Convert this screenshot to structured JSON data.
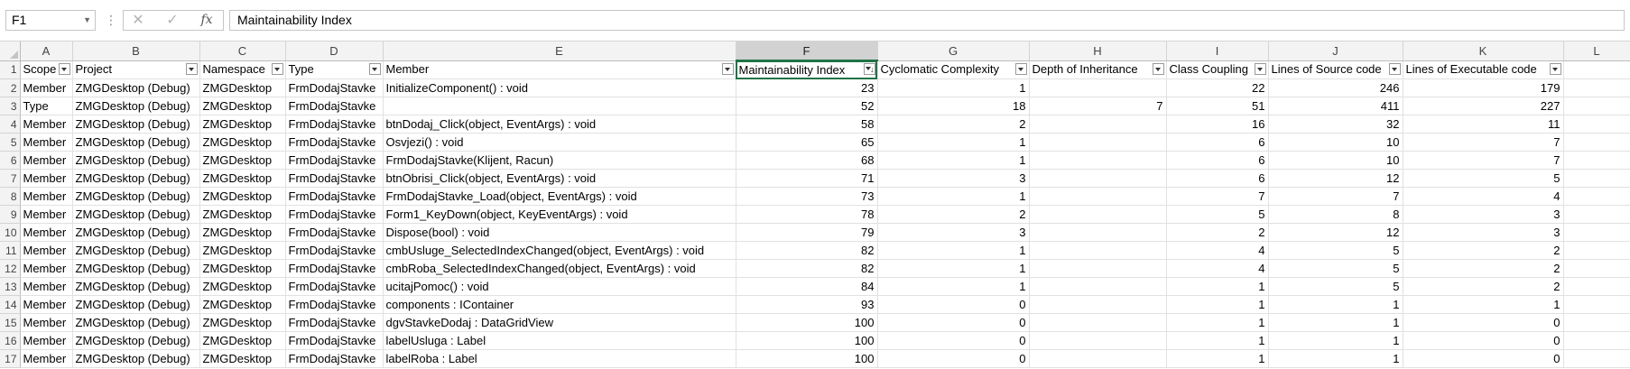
{
  "formula_bar": {
    "name_box": "F1",
    "formula": "Maintainability Index",
    "fx_label": "fx",
    "cancel_glyph": "✕",
    "enter_glyph": "✓",
    "dots_glyph": "⋮"
  },
  "columns": [
    "A",
    "B",
    "C",
    "D",
    "E",
    "F",
    "G",
    "H",
    "I",
    "J",
    "K",
    "L"
  ],
  "active_column": "F",
  "headers": [
    "Scope",
    "Project",
    "Namespace",
    "Type",
    "Member",
    "Maintainability Index",
    "Cyclomatic Complexity",
    "Depth of Inheritance",
    "Class Coupling",
    "Lines of Source code",
    "Lines of Executable code"
  ],
  "rows": [
    [
      "Member",
      "ZMGDesktop (Debug)",
      "ZMGDesktop",
      "FrmDodajStavke",
      "InitializeComponent() : void",
      "23",
      "1",
      "",
      "22",
      "246",
      "179"
    ],
    [
      "Type",
      "ZMGDesktop (Debug)",
      "ZMGDesktop",
      "FrmDodajStavke",
      "",
      "52",
      "18",
      "7",
      "51",
      "411",
      "227"
    ],
    [
      "Member",
      "ZMGDesktop (Debug)",
      "ZMGDesktop",
      "FrmDodajStavke",
      "btnDodaj_Click(object, EventArgs) : void",
      "58",
      "2",
      "",
      "16",
      "32",
      "11"
    ],
    [
      "Member",
      "ZMGDesktop (Debug)",
      "ZMGDesktop",
      "FrmDodajStavke",
      "Osvjezi() : void",
      "65",
      "1",
      "",
      "6",
      "10",
      "7"
    ],
    [
      "Member",
      "ZMGDesktop (Debug)",
      "ZMGDesktop",
      "FrmDodajStavke",
      "FrmDodajStavke(Klijent, Racun)",
      "68",
      "1",
      "",
      "6",
      "10",
      "7"
    ],
    [
      "Member",
      "ZMGDesktop (Debug)",
      "ZMGDesktop",
      "FrmDodajStavke",
      "btnObrisi_Click(object, EventArgs) : void",
      "71",
      "3",
      "",
      "6",
      "12",
      "5"
    ],
    [
      "Member",
      "ZMGDesktop (Debug)",
      "ZMGDesktop",
      "FrmDodajStavke",
      "FrmDodajStavke_Load(object, EventArgs) : void",
      "73",
      "1",
      "",
      "7",
      "7",
      "4"
    ],
    [
      "Member",
      "ZMGDesktop (Debug)",
      "ZMGDesktop",
      "FrmDodajStavke",
      "Form1_KeyDown(object, KeyEventArgs) : void",
      "78",
      "2",
      "",
      "5",
      "8",
      "3"
    ],
    [
      "Member",
      "ZMGDesktop (Debug)",
      "ZMGDesktop",
      "FrmDodajStavke",
      "Dispose(bool) : void",
      "79",
      "3",
      "",
      "2",
      "12",
      "3"
    ],
    [
      "Member",
      "ZMGDesktop (Debug)",
      "ZMGDesktop",
      "FrmDodajStavke",
      "cmbUsluge_SelectedIndexChanged(object, EventArgs) : void",
      "82",
      "1",
      "",
      "4",
      "5",
      "2"
    ],
    [
      "Member",
      "ZMGDesktop (Debug)",
      "ZMGDesktop",
      "FrmDodajStavke",
      "cmbRoba_SelectedIndexChanged(object, EventArgs) : void",
      "82",
      "1",
      "",
      "4",
      "5",
      "2"
    ],
    [
      "Member",
      "ZMGDesktop (Debug)",
      "ZMGDesktop",
      "FrmDodajStavke",
      "ucitajPomoc() : void",
      "84",
      "1",
      "",
      "1",
      "5",
      "2"
    ],
    [
      "Member",
      "ZMGDesktop (Debug)",
      "ZMGDesktop",
      "FrmDodajStavke",
      "components : IContainer",
      "93",
      "0",
      "",
      "1",
      "1",
      "1"
    ],
    [
      "Member",
      "ZMGDesktop (Debug)",
      "ZMGDesktop",
      "FrmDodajStavke",
      "dgvStavkeDodaj : DataGridView",
      "100",
      "0",
      "",
      "1",
      "1",
      "0"
    ],
    [
      "Member",
      "ZMGDesktop (Debug)",
      "ZMGDesktop",
      "FrmDodajStavke",
      "labelUsluga : Label",
      "100",
      "0",
      "",
      "1",
      "1",
      "0"
    ],
    [
      "Member",
      "ZMGDesktop (Debug)",
      "ZMGDesktop",
      "FrmDodajStavke",
      "labelRoba : Label",
      "100",
      "0",
      "",
      "1",
      "1",
      "0"
    ]
  ]
}
